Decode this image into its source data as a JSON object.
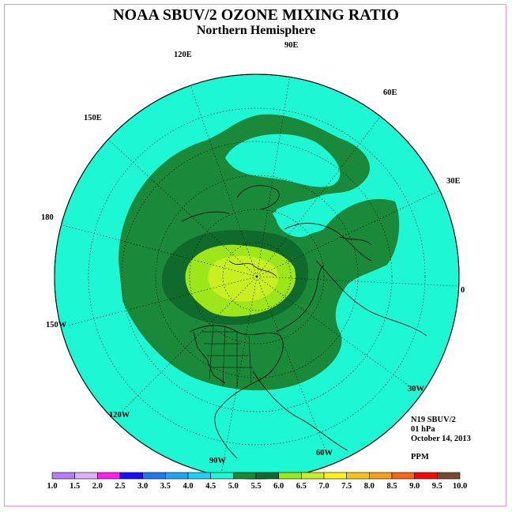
{
  "header": {
    "title": "NOAA SBUV/2 OZONE MIXING RATIO",
    "subtitle": "Northern Hemisphere"
  },
  "map": {
    "longitude_labels": [
      {
        "key": "90E",
        "text": "90E"
      },
      {
        "key": "120E",
        "text": "120E"
      },
      {
        "key": "60E",
        "text": "60E"
      },
      {
        "key": "150E",
        "text": "150E"
      },
      {
        "key": "30E",
        "text": "30E"
      },
      {
        "key": "180",
        "text": "180"
      },
      {
        "key": "0",
        "text": "0"
      },
      {
        "key": "150W",
        "text": "150W"
      },
      {
        "key": "30W",
        "text": "30W"
      },
      {
        "key": "120W",
        "text": "120W"
      },
      {
        "key": "60W",
        "text": "60W"
      },
      {
        "key": "90W",
        "text": "90W"
      }
    ],
    "region_colors": {
      "background_cyan": "#1df7d4",
      "green_5_0": "#1a8a3a",
      "green_5_5": "#0f6a2c",
      "lime_6_0": "#9ce61a",
      "yellow_green": "#c8f020"
    }
  },
  "info": {
    "instrument": "N19 SBUV/2",
    "pressure": "01 hPa",
    "date": "October 14, 2013",
    "units": "PPM"
  },
  "colorbar": {
    "ticks": [
      "1.0",
      "1.5",
      "2.0",
      "2.5",
      "3.0",
      "3.5",
      "4.0",
      "4.5",
      "5.0",
      "5.5",
      "6.0",
      "6.5",
      "7.0",
      "7.5",
      "8.0",
      "8.5",
      "9.0",
      "9.5",
      "10.0"
    ],
    "colors": [
      "#b57ef5",
      "#e0b0f5",
      "#ff1ff0",
      "#1a10ff",
      "#1a7cf0",
      "#1aa8f5",
      "#1ad0f5",
      "#1df7d4",
      "#1a8a3a",
      "#0f6a2c",
      "#9ce61a",
      "#c8f020",
      "#fff31a",
      "#f5c41a",
      "#f5a21a",
      "#f56a10",
      "#f50a0a",
      "#7a4a30"
    ]
  }
}
